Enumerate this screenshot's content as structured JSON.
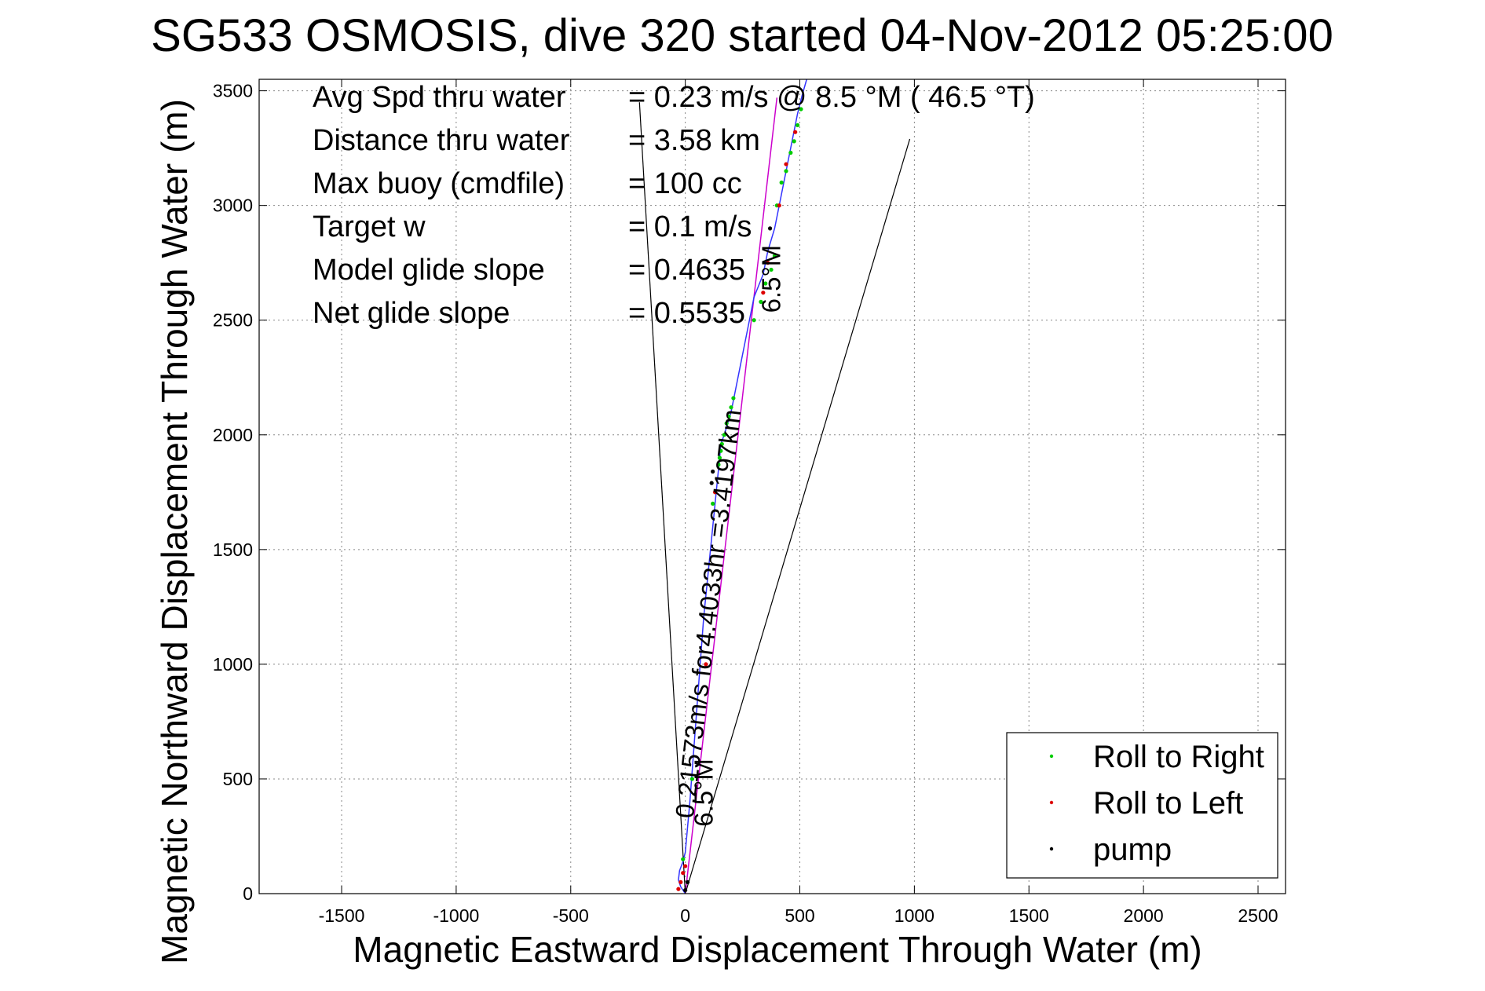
{
  "chart_data": {
    "type": "scatter",
    "title": "SG533 OSMOSIS, dive 320 started 04-Nov-2012 05:25:00",
    "xlabel": "Magnetic Eastward Displacement Through Water (m)",
    "ylabel": "Magnetic Northward Displacement Through Water (m)",
    "xlim": [
      -1860,
      2620
    ],
    "ylim": [
      0,
      3550
    ],
    "xticks": [
      -1500,
      -1000,
      -500,
      0,
      500,
      1000,
      1500,
      2000,
      2500
    ],
    "yticks": [
      0,
      500,
      1000,
      1500,
      2000,
      2500,
      3000,
      3500
    ],
    "grid": true,
    "stats": [
      {
        "label": "Avg Spd thru water",
        "value": "=  0.23 m/s @   8.5 °M ( 46.5 °T)"
      },
      {
        "label": "Distance thru water",
        "value": "=  3.58 km"
      },
      {
        "label": "Max buoy (cmdfile)",
        "value": "= 100 cc"
      },
      {
        "label": "Target w",
        "value": "= 0.1 m/s"
      },
      {
        "label": "Model glide slope",
        "value": "= 0.4635"
      },
      {
        "label": "Net glide slope",
        "value": "= 0.5535"
      }
    ],
    "annotations": {
      "along_track": "0.21573m/s for4.4033hr =3.4197km",
      "heading_top": "6.5°M",
      "heading_bottom": "6.5°M"
    },
    "legend": {
      "placement": "bottom-right",
      "entries": [
        {
          "name": "Roll to Right",
          "color": "#00cc00"
        },
        {
          "name": "Roll to Left",
          "color": "#dd0000"
        },
        {
          "name": "pump",
          "color": "#000000"
        }
      ]
    },
    "track": {
      "name": "dive track",
      "color": "#3333ff",
      "x": [
        0,
        -20,
        -30,
        -25,
        -10,
        0,
        20,
        50,
        80,
        110,
        130,
        140,
        150,
        155,
        170,
        200,
        240,
        280,
        300,
        320,
        340,
        360,
        390,
        410,
        430,
        450,
        470,
        490,
        510,
        530
      ],
      "y": [
        0,
        30,
        60,
        100,
        140,
        180,
        400,
        800,
        1200,
        1500,
        1700,
        1800,
        1900,
        1960,
        2000,
        2100,
        2300,
        2500,
        2600,
        2650,
        2700,
        2800,
        2900,
        3000,
        3100,
        3200,
        3300,
        3400,
        3480,
        3550
      ]
    },
    "dead_reckoning_line": {
      "name": "dead reckoning",
      "color": "#cc00cc",
      "x": [
        0,
        400
      ],
      "y": [
        0,
        3470
      ]
    },
    "heading_cone": {
      "color": "#000000",
      "left": {
        "x": [
          0,
          -200
        ],
        "y": [
          0,
          3450
        ]
      },
      "right": {
        "x": [
          0,
          980
        ],
        "y": [
          0,
          3290
        ]
      }
    },
    "roll_right": {
      "x": [
        -10,
        30,
        120,
        145,
        150,
        155,
        160,
        170,
        180,
        190,
        200,
        210,
        300,
        330,
        350,
        375,
        390,
        400,
        420,
        440,
        460,
        475,
        490,
        505
      ],
      "y": [
        150,
        500,
        1700,
        1870,
        1900,
        1930,
        1960,
        2000,
        2050,
        2080,
        2120,
        2160,
        2500,
        2580,
        2660,
        2720,
        2780,
        3000,
        3100,
        3150,
        3230,
        3280,
        3350,
        3420
      ]
    },
    "roll_left": {
      "x": [
        -30,
        -20,
        -10,
        0,
        90,
        130,
        340,
        360,
        410,
        440,
        480
      ],
      "y": [
        20,
        50,
        90,
        120,
        1000,
        1750,
        2620,
        2750,
        3000,
        3180,
        3320
      ]
    },
    "pump": {
      "x": [
        0,
        10,
        115,
        120,
        370
      ],
      "y": [
        15,
        50,
        1790,
        1840,
        2900
      ]
    }
  }
}
